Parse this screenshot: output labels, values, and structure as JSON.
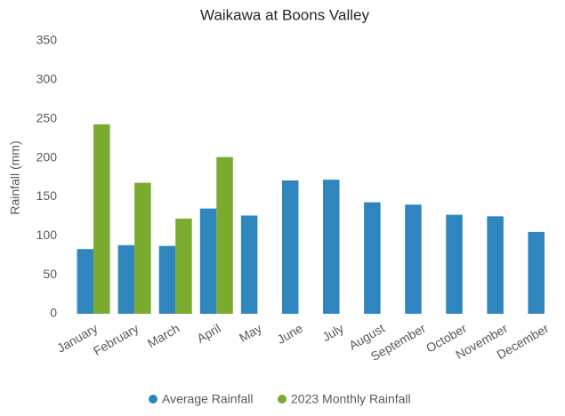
{
  "chart_data": {
    "type": "bar",
    "title": "Waikawa at Boons Valley",
    "y_label": "Rainfall (mm)",
    "categories": [
      "January",
      "February",
      "March",
      "April",
      "May",
      "June",
      "July",
      "August",
      "September",
      "October",
      "November",
      "December"
    ],
    "series": [
      {
        "name": "Average Rainfall",
        "color": "#2f86bf",
        "values": [
          83,
          88,
          87,
          135,
          126,
          171,
          172,
          143,
          140,
          127,
          125,
          105
        ]
      },
      {
        "name": "2023 Monthly Rainfall",
        "color": "#7aab2f",
        "values": [
          243,
          168,
          122,
          201,
          null,
          null,
          null,
          null,
          null,
          null,
          null,
          null
        ]
      }
    ],
    "ylim": [
      0,
      350
    ],
    "yticks": [
      0,
      50,
      100,
      150,
      200,
      250,
      300,
      350
    ],
    "grid": false,
    "legend": "bottom"
  }
}
